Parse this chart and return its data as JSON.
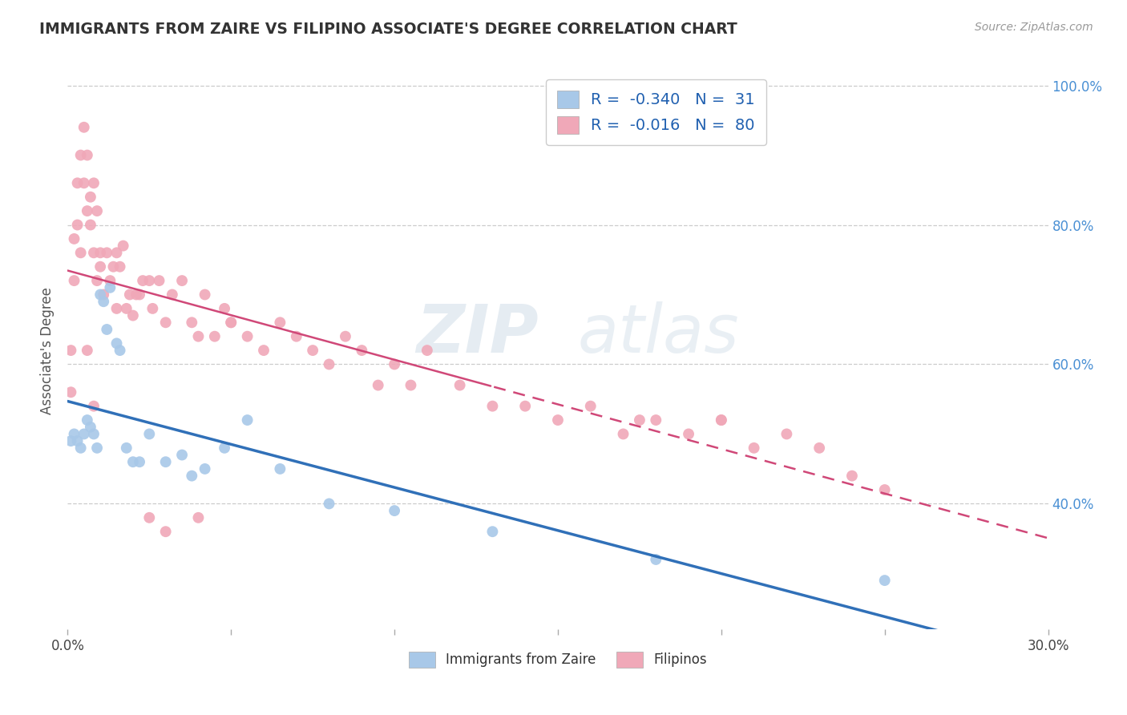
{
  "title": "IMMIGRANTS FROM ZAIRE VS FILIPINO ASSOCIATE'S DEGREE CORRELATION CHART",
  "source": "Source: ZipAtlas.com",
  "xlabel": "",
  "ylabel": "Associate's Degree",
  "legend_labels": [
    "Immigrants from Zaire",
    "Filipinos"
  ],
  "r_zaire": -0.34,
  "n_zaire": 31,
  "r_filipino": -0.016,
  "n_filipino": 80,
  "xmin": 0.0,
  "xmax": 0.3,
  "ymin": 0.22,
  "ymax": 1.02,
  "yticks": [
    0.4,
    0.6,
    0.8,
    1.0
  ],
  "ytick_labels": [
    "40.0%",
    "60.0%",
    "80.0%",
    "100.0%"
  ],
  "xticks": [
    0.0,
    0.05,
    0.1,
    0.15,
    0.2,
    0.25,
    0.3
  ],
  "xtick_labels": [
    "0.0%",
    "",
    "",
    "",
    "",
    "",
    "30.0%"
  ],
  "color_zaire": "#a8c8e8",
  "color_filipino": "#f0a8b8",
  "line_color_zaire": "#3070b8",
  "line_color_filipino": "#d04878",
  "background_color": "#ffffff",
  "watermark_line1": "ZIP",
  "watermark_line2": "atlas",
  "zaire_x": [
    0.001,
    0.002,
    0.003,
    0.004,
    0.005,
    0.006,
    0.007,
    0.008,
    0.009,
    0.01,
    0.011,
    0.012,
    0.013,
    0.015,
    0.016,
    0.018,
    0.02,
    0.022,
    0.025,
    0.03,
    0.035,
    0.038,
    0.042,
    0.048,
    0.055,
    0.065,
    0.08,
    0.1,
    0.13,
    0.18,
    0.25
  ],
  "zaire_y": [
    0.49,
    0.5,
    0.49,
    0.48,
    0.5,
    0.52,
    0.51,
    0.5,
    0.48,
    0.7,
    0.69,
    0.65,
    0.71,
    0.63,
    0.62,
    0.48,
    0.46,
    0.46,
    0.5,
    0.46,
    0.47,
    0.44,
    0.45,
    0.48,
    0.52,
    0.45,
    0.4,
    0.39,
    0.36,
    0.32,
    0.29
  ],
  "filipino_x": [
    0.001,
    0.001,
    0.002,
    0.002,
    0.003,
    0.003,
    0.004,
    0.004,
    0.005,
    0.005,
    0.006,
    0.006,
    0.007,
    0.007,
    0.008,
    0.008,
    0.009,
    0.009,
    0.01,
    0.01,
    0.011,
    0.012,
    0.013,
    0.014,
    0.015,
    0.015,
    0.016,
    0.017,
    0.018,
    0.019,
    0.02,
    0.021,
    0.022,
    0.023,
    0.025,
    0.026,
    0.028,
    0.03,
    0.032,
    0.035,
    0.038,
    0.04,
    0.042,
    0.045,
    0.048,
    0.05,
    0.055,
    0.06,
    0.065,
    0.07,
    0.075,
    0.08,
    0.085,
    0.09,
    0.095,
    0.1,
    0.105,
    0.11,
    0.12,
    0.13,
    0.14,
    0.15,
    0.16,
    0.17,
    0.175,
    0.18,
    0.19,
    0.2,
    0.21,
    0.22,
    0.23,
    0.24,
    0.25,
    0.025,
    0.04,
    0.05,
    0.03,
    0.2,
    0.006,
    0.008
  ],
  "filipino_y": [
    0.56,
    0.62,
    0.72,
    0.78,
    0.8,
    0.86,
    0.76,
    0.9,
    0.86,
    0.94,
    0.82,
    0.9,
    0.84,
    0.8,
    0.76,
    0.86,
    0.72,
    0.82,
    0.74,
    0.76,
    0.7,
    0.76,
    0.72,
    0.74,
    0.68,
    0.76,
    0.74,
    0.77,
    0.68,
    0.7,
    0.67,
    0.7,
    0.7,
    0.72,
    0.72,
    0.68,
    0.72,
    0.66,
    0.7,
    0.72,
    0.66,
    0.64,
    0.7,
    0.64,
    0.68,
    0.66,
    0.64,
    0.62,
    0.66,
    0.64,
    0.62,
    0.6,
    0.64,
    0.62,
    0.57,
    0.6,
    0.57,
    0.62,
    0.57,
    0.54,
    0.54,
    0.52,
    0.54,
    0.5,
    0.52,
    0.52,
    0.5,
    0.52,
    0.48,
    0.5,
    0.48,
    0.44,
    0.42,
    0.38,
    0.38,
    0.66,
    0.36,
    0.52,
    0.62,
    0.54
  ]
}
